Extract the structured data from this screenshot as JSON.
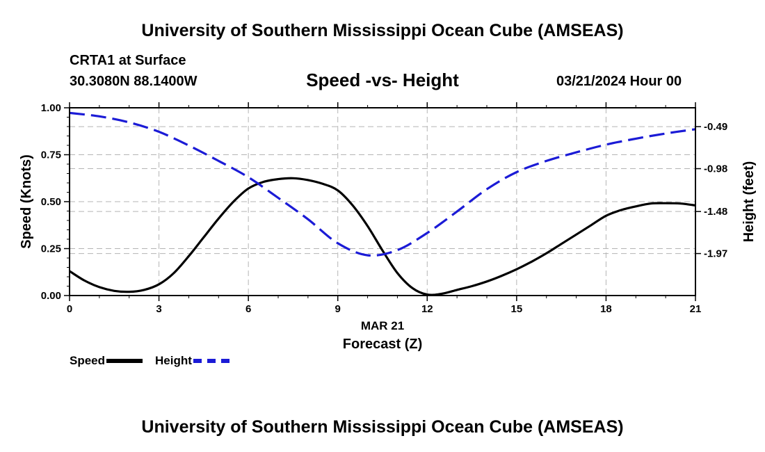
{
  "header": {
    "title": "University of Southern Mississippi Ocean Cube (AMSEAS)",
    "station": "CRTA1 at Surface",
    "coords": "30.3080N  88.1400W",
    "chart_title": "Speed -vs- Height",
    "datetime": "03/21/2024 Hour 00"
  },
  "footer": {
    "title": "University of Southern Mississippi Ocean Cube (AMSEAS)"
  },
  "legend": {
    "speed_label": "Speed",
    "height_label": "Height"
  },
  "colors": {
    "speed": "#000000",
    "height": "#1b1bd6",
    "grid": "#b4b4b4"
  },
  "chart_data": {
    "type": "line",
    "title": "Speed -vs- Height",
    "xlabel": "Forecast (Z)",
    "xlabel_date": "MAR 21",
    "ylabel": "Speed (Knots)",
    "y2label": "Height (feet)",
    "xlim": [
      0,
      21
    ],
    "ylim": [
      0,
      1
    ],
    "y2lim": [
      -2.46,
      -0.27
    ],
    "x_ticks": [
      0,
      3,
      6,
      9,
      12,
      15,
      18,
      21
    ],
    "x_tick_labels": [
      "0",
      "3",
      "6",
      "9",
      "12",
      "15",
      "18",
      "21"
    ],
    "y_ticks": [
      0,
      0.25,
      0.5,
      0.75,
      1.0
    ],
    "y_tick_labels": [
      "0.00",
      "0.25",
      "0.50",
      "0.75",
      "1.00"
    ],
    "y2_ticks": [
      -1.97,
      -1.48,
      -0.98,
      -0.49
    ],
    "y2_tick_labels": [
      "-1.97",
      "-1.48",
      "-0.98",
      "-0.49"
    ],
    "grid": true,
    "series": [
      {
        "name": "Speed",
        "axis": "left",
        "style": "solid",
        "x": [
          0,
          0.5,
          1,
          1.5,
          2,
          2.5,
          3,
          3.5,
          4,
          4.5,
          5,
          5.5,
          6,
          6.5,
          7,
          7.5,
          8,
          8.5,
          9,
          9.5,
          10,
          10.5,
          11,
          11.5,
          12,
          12.5,
          13,
          13.5,
          14,
          14.5,
          15,
          15.5,
          16,
          16.5,
          17,
          17.5,
          18,
          18.5,
          19,
          19.5,
          20,
          20.5,
          21
        ],
        "values": [
          0.13,
          0.08,
          0.045,
          0.025,
          0.02,
          0.03,
          0.06,
          0.12,
          0.21,
          0.31,
          0.41,
          0.5,
          0.57,
          0.605,
          0.62,
          0.625,
          0.615,
          0.595,
          0.56,
          0.48,
          0.37,
          0.24,
          0.12,
          0.04,
          0.005,
          0.01,
          0.03,
          0.05,
          0.075,
          0.105,
          0.14,
          0.18,
          0.225,
          0.275,
          0.325,
          0.375,
          0.425,
          0.455,
          0.475,
          0.49,
          0.492,
          0.49,
          0.48
        ]
      },
      {
        "name": "Height",
        "axis": "right",
        "style": "dashed",
        "x": [
          0,
          1,
          2,
          3,
          4,
          5,
          6,
          7,
          8,
          9,
          10,
          11,
          12,
          13,
          14,
          15,
          16,
          17,
          18,
          19,
          20,
          21
        ],
        "values": [
          -0.33,
          -0.37,
          -0.44,
          -0.55,
          -0.71,
          -0.89,
          -1.08,
          -1.32,
          -1.57,
          -1.85,
          -1.99,
          -1.93,
          -1.73,
          -1.48,
          -1.22,
          -1.02,
          -0.89,
          -0.79,
          -0.7,
          -0.63,
          -0.57,
          -0.52
        ]
      }
    ]
  }
}
